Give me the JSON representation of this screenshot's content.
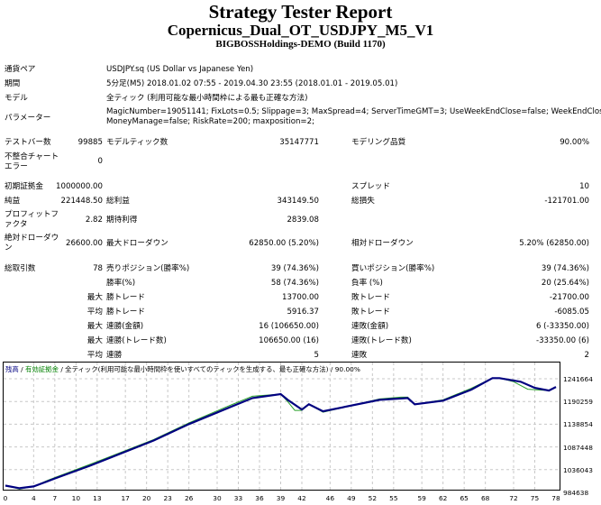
{
  "header": {
    "title": "Strategy Tester Report",
    "ea_name": "Copernicus_Dual_OT_USDJPY_M5_V1",
    "server": "BIGBOSSHoldings-DEMO (Build 1170)"
  },
  "settings": {
    "symbol_label": "通貨ペア",
    "symbol_value": "USDJPY.sq (US Dollar vs Japanese Yen)",
    "period_label": "期間",
    "period_value": "5分足(M5) 2018.01.02 07:55 - 2019.04.30 23:55 (2018.01.01 - 2019.05.01)",
    "model_label": "モデル",
    "model_value": "全ティック (利用可能な最小時間枠による最も正確な方法)",
    "params_label": "パラメーター",
    "params_line1": "MagicNumber=19051141; FixLots=0.5; Slippage=3; MaxSpread=4; ServerTimeGMT=3; UseWeekEndClose=false; WeekEndCloseTime=-1;",
    "params_line2": "MoneyManage=false; RiskRate=200; maxposition=2;"
  },
  "stats": {
    "bars_label": "テストバー数",
    "bars_value": "99885",
    "ticks_label": "モデルティック数",
    "ticks_value": "35147771",
    "quality_label": "モデリング品質",
    "quality_value": "90.00%",
    "mismatch_label": "不整合チャートエラー",
    "mismatch_value": "0",
    "deposit_label": "初期証拠金",
    "deposit_value": "1000000.00",
    "spread_label": "スプレッド",
    "spread_value": "10",
    "net_label": "純益",
    "net_value": "221448.50",
    "gross_profit_label": "総利益",
    "gross_profit_value": "343149.50",
    "gross_loss_label": "総損失",
    "gross_loss_value": "-121701.00",
    "pf_label": "プロフィットファクタ",
    "pf_value": "2.82",
    "expected_label": "期待利得",
    "expected_value": "2839.08",
    "abs_dd_label": "絶対ドローダウン",
    "abs_dd_value": "26600.00",
    "max_dd_label": "最大ドローダウン",
    "max_dd_value": "62850.00 (5.20%)",
    "rel_dd_label": "相対ドローダウン",
    "rel_dd_value": "5.20% (62850.00)"
  },
  "trades": {
    "total_label": "総取引数",
    "total_value": "78",
    "short_label": "売りポジション(勝率%)",
    "short_value": "39 (74.36%)",
    "long_label": "買いポジション(勝率%)",
    "long_value": "39 (74.36%)",
    "win_label": "勝率(%)",
    "win_value": "58 (74.36%)",
    "loss_label": "負率 (%)",
    "loss_value": "20 (25.64%)",
    "rows": [
      {
        "prefix": "最大",
        "a_label": "勝トレード",
        "a_value": "13700.00",
        "b_label": "敗トレード",
        "b_value": "-21700.00"
      },
      {
        "prefix": "平均",
        "a_label": "勝トレード",
        "a_value": "5916.37",
        "b_label": "敗トレード",
        "b_value": "-6085.05"
      },
      {
        "prefix": "最大",
        "a_label": "連勝(金額)",
        "a_value": "16 (106650.00)",
        "b_label": "連敗(金額)",
        "b_value": "6 (-33350.00)"
      },
      {
        "prefix": "最大",
        "a_label": "連勝(トレード数)",
        "a_value": "106650.00 (16)",
        "b_label": "連敗(トレード数)",
        "b_value": "-33350.00 (6)"
      },
      {
        "prefix": "平均",
        "a_label": "連勝",
        "a_value": "5",
        "b_label": "連敗",
        "b_value": "2"
      }
    ]
  },
  "chart_legend": {
    "balance": "残高",
    "sep1": " / ",
    "equity": "有効証拠金",
    "sep2": " / ",
    "model": "全ティック(利用可能な最小時間枠を使いすべてのティックを生成する、最も正確な方法)",
    "sep3": " / ",
    "quality": "90.00%",
    "balance_color": "#000080",
    "equity_color": "#008000"
  },
  "chart_data": {
    "type": "line",
    "title": "残高 / 有効証拠金",
    "xlabel": "",
    "ylabel": "",
    "x_ticks": [
      0,
      4,
      7,
      10,
      13,
      17,
      20,
      23,
      26,
      30,
      33,
      36,
      39,
      42,
      46,
      49,
      52,
      55,
      59,
      62,
      65,
      68,
      72,
      75,
      78
    ],
    "y_ticks": [
      984638,
      1036043,
      1087448,
      1138854,
      1190259,
      1241664
    ],
    "xlim": [
      0,
      78
    ],
    "ylim": [
      984638,
      1255000
    ],
    "grid": true,
    "series": [
      {
        "name": "残高",
        "color": "#000080",
        "x": [
          0,
          2,
          4,
          6,
          7,
          12,
          21,
          26,
          31,
          35,
          39,
          40,
          42,
          43,
          45,
          53,
          57,
          58,
          62,
          66,
          69,
          70,
          73,
          75,
          77,
          78
        ],
        "values": [
          1000000,
          994000,
          998000,
          1010000,
          1016000,
          1045000,
          1102000,
          1139000,
          1172000,
          1198000,
          1207000,
          1194000,
          1172000,
          1184000,
          1168000,
          1194000,
          1198000,
          1184000,
          1192000,
          1217000,
          1243000,
          1243000,
          1235000,
          1221000,
          1215000,
          1223000
        ]
      },
      {
        "name": "有効証拠金",
        "color": "#008000",
        "x": [
          0,
          2,
          4,
          6,
          7,
          12,
          21,
          26,
          31,
          35,
          39,
          40,
          41,
          42,
          43,
          45,
          53,
          56,
          57,
          58,
          62,
          66,
          69,
          70,
          72,
          74,
          75,
          77,
          78
        ],
        "values": [
          1000000,
          992000,
          998000,
          1012000,
          1018000,
          1048000,
          1104000,
          1142000,
          1176000,
          1202000,
          1207000,
          1190000,
          1170000,
          1170000,
          1184000,
          1166000,
          1196000,
          1200000,
          1200000,
          1184000,
          1194000,
          1220000,
          1243000,
          1243000,
          1235000,
          1218000,
          1217000,
          1215000,
          1223000
        ]
      }
    ]
  }
}
